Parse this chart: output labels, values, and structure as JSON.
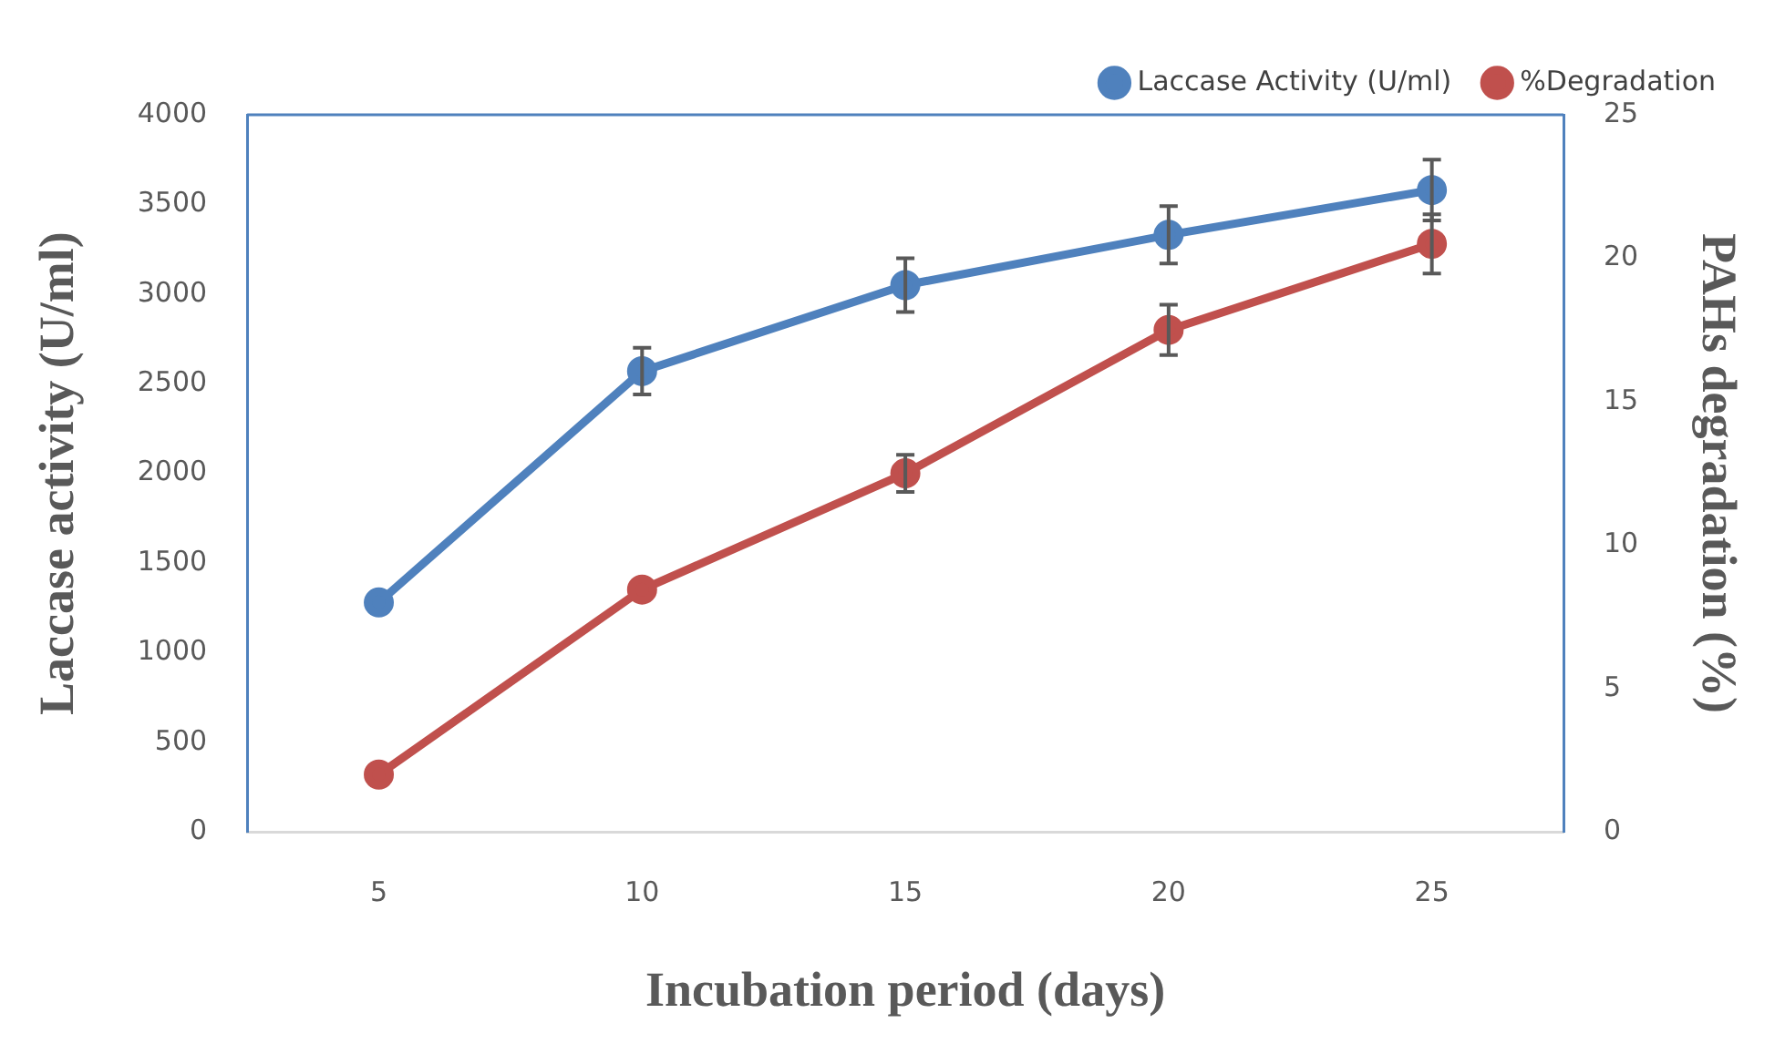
{
  "chart_data": {
    "type": "line",
    "xlabel": "Incubation period (days)",
    "ylabel": "Laccase activity (U/ml)",
    "y2label": "PAHs degradation (%)",
    "categories": [
      "5",
      "10",
      "15",
      "20",
      "25"
    ],
    "series": [
      {
        "name": "Laccase Activity (U/ml)",
        "color": "#4f81bd",
        "values": [
          1280,
          2570,
          3050,
          3330,
          3580
        ],
        "errors": [
          null,
          130,
          150,
          160,
          170
        ]
      },
      {
        "name": "%Degradation",
        "color": "#c0504d",
        "axis": "y2",
        "values": [
          2,
          8.45,
          12.5,
          17.5,
          20.5
        ],
        "errors": [
          null,
          null,
          0.65,
          0.88,
          1.03
        ]
      }
    ],
    "ylim": [
      0,
      4000
    ],
    "yticks": [
      0,
      500,
      1000,
      1500,
      2000,
      2500,
      3000,
      3500,
      4000
    ],
    "y2lim": [
      0,
      25
    ],
    "y2ticks": [
      0,
      5,
      10,
      15,
      20,
      25
    ],
    "grid": false,
    "legend": "top right",
    "marker": "circle",
    "line_style": "solid"
  }
}
